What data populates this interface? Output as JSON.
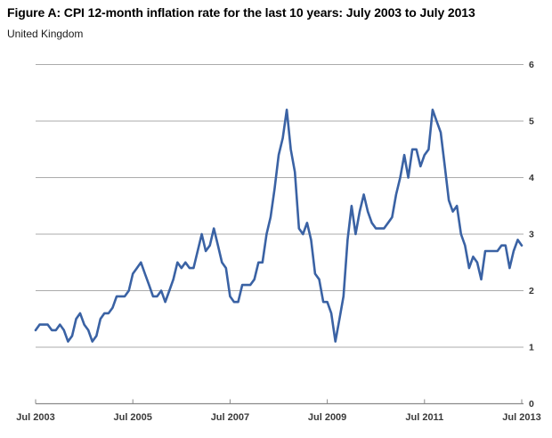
{
  "header": {
    "title": "Figure A: CPI 12-month inflation rate for the last 10 years: July 2003 to July 2013",
    "subtitle": "United Kingdom"
  },
  "chart_data": {
    "type": "line",
    "title": "Figure A: CPI 12-month inflation rate for the last 10 years: July 2003 to July 2013",
    "subtitle": "United Kingdom",
    "unit": "%",
    "x_frequency": "monthly",
    "x_start": "Jul 2003",
    "x_end": "Jul 2013",
    "x_tick_labels": [
      "Jul 2003",
      "Jul 2005",
      "Jul 2007",
      "Jul 2009",
      "Jul 2011",
      "Jul 2013"
    ],
    "y_ticks": [
      0,
      1,
      2,
      3,
      4,
      5,
      6
    ],
    "ylim": [
      0,
      6
    ],
    "grid": "horizontal",
    "y_axis_side": "right",
    "legend": "none",
    "line_color": "#3A62A4",
    "grid_color": "#ababab",
    "axis_color": "#8a8a8a",
    "series": [
      {
        "name": "CPI 12-month inflation rate",
        "values": [
          1.3,
          1.4,
          1.4,
          1.4,
          1.3,
          1.3,
          1.4,
          1.3,
          1.1,
          1.2,
          1.5,
          1.6,
          1.4,
          1.3,
          1.1,
          1.2,
          1.5,
          1.6,
          1.6,
          1.7,
          1.9,
          1.9,
          1.9,
          2.0,
          2.3,
          2.4,
          2.5,
          2.3,
          2.1,
          1.9,
          1.9,
          2.0,
          1.8,
          2.0,
          2.2,
          2.5,
          2.4,
          2.5,
          2.4,
          2.4,
          2.7,
          3.0,
          2.7,
          2.8,
          3.1,
          2.8,
          2.5,
          2.4,
          1.9,
          1.8,
          1.8,
          2.1,
          2.1,
          2.1,
          2.2,
          2.5,
          2.5,
          3.0,
          3.3,
          3.8,
          4.4,
          4.7,
          5.2,
          4.5,
          4.1,
          3.1,
          3.0,
          3.2,
          2.9,
          2.3,
          2.2,
          1.8,
          1.8,
          1.6,
          1.1,
          1.5,
          1.9,
          2.9,
          3.5,
          3.0,
          3.4,
          3.7,
          3.4,
          3.2,
          3.1,
          3.1,
          3.1,
          3.2,
          3.3,
          3.7,
          4.0,
          4.4,
          4.0,
          4.5,
          4.5,
          4.2,
          4.4,
          4.5,
          5.2,
          5.0,
          4.8,
          4.2,
          3.6,
          3.4,
          3.5,
          3.0,
          2.8,
          2.4,
          2.6,
          2.5,
          2.2,
          2.7,
          2.7,
          2.7,
          2.7,
          2.8,
          2.8,
          2.4,
          2.7,
          2.9,
          2.8
        ]
      }
    ]
  }
}
